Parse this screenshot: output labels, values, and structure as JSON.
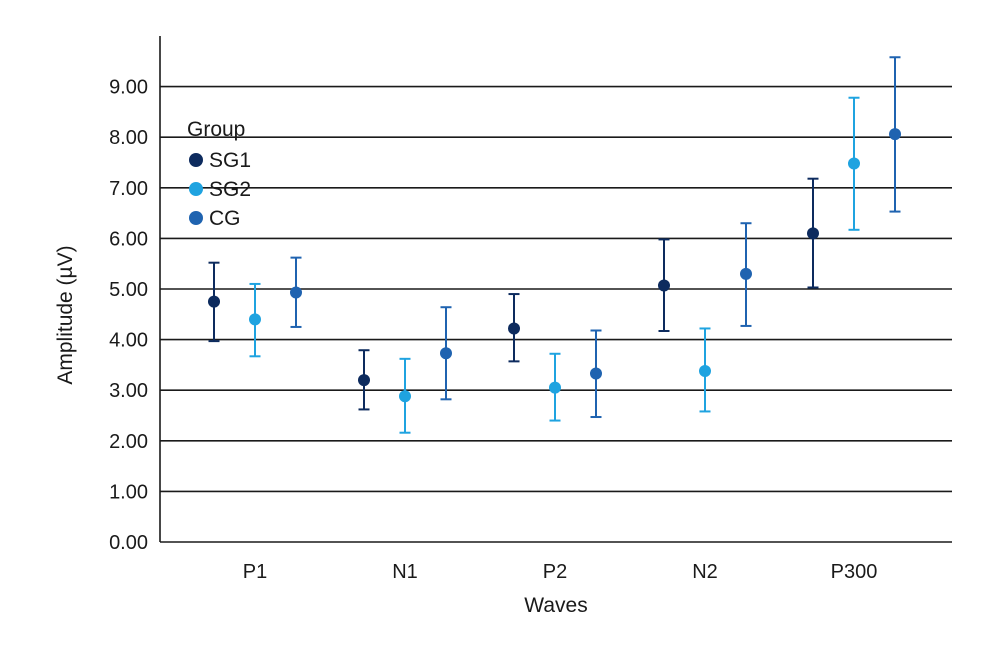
{
  "chart_data": {
    "type": "errorbar",
    "categories": [
      "P1",
      "N1",
      "P2",
      "N2",
      "P300"
    ],
    "xlabel": "Waves",
    "ylabel": "Amplitude (µV)",
    "ylim": [
      0,
      10
    ],
    "yticks": [
      "0.00",
      "1.00",
      "2.00",
      "3.00",
      "4.00",
      "5.00",
      "6.00",
      "7.00",
      "8.00",
      "9.00"
    ],
    "grid": "horizontal",
    "legend": {
      "title": "Group",
      "position": "top-left"
    },
    "series": [
      {
        "name": "SG1",
        "color": "#0d2b5e",
        "values": [
          4.75,
          3.2,
          4.22,
          5.07,
          6.1
        ],
        "lower": [
          3.97,
          2.62,
          3.57,
          4.17,
          5.03
        ],
        "upper": [
          5.52,
          3.79,
          4.9,
          5.98,
          7.18
        ]
      },
      {
        "name": "SG2",
        "color": "#1fa3e0",
        "values": [
          4.4,
          2.88,
          3.05,
          3.38,
          7.48
        ],
        "lower": [
          3.67,
          2.16,
          2.4,
          2.58,
          6.17
        ],
        "upper": [
          5.1,
          3.62,
          3.72,
          4.22,
          8.78
        ]
      },
      {
        "name": "CG",
        "color": "#1f63b0",
        "values": [
          4.93,
          3.73,
          3.33,
          5.3,
          8.06
        ],
        "lower": [
          4.25,
          2.82,
          2.47,
          4.27,
          6.53
        ],
        "upper": [
          5.62,
          4.64,
          4.18,
          6.3,
          9.58
        ]
      }
    ]
  }
}
